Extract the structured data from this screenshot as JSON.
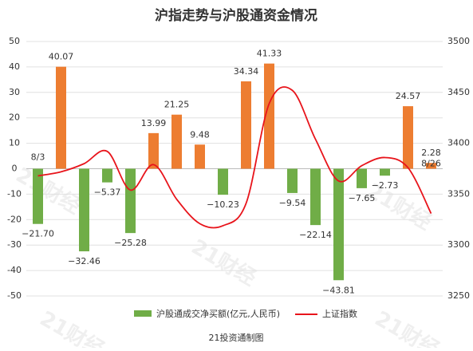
{
  "chart_data": {
    "type": "bar",
    "title": "沪指走势与沪股通资金情况",
    "source": "21投资通制图",
    "watermark": "21财经",
    "categories": [
      "8/3",
      null,
      null,
      null,
      null,
      null,
      null,
      null,
      null,
      null,
      null,
      null,
      null,
      null,
      null,
      null,
      null,
      "8/26"
    ],
    "series": [
      {
        "name": "沪股通成交净买额(亿元,人民币)",
        "type": "bar",
        "positive_color": "#ed7d31",
        "negative_color": "#70ad47",
        "values": [
          -21.7,
          40.07,
          -32.46,
          -5.37,
          -25.28,
          13.99,
          21.25,
          9.48,
          -10.23,
          34.34,
          41.33,
          -9.54,
          -22.14,
          -43.81,
          -7.65,
          -2.73,
          24.57,
          2.28
        ],
        "value_labels": [
          "−21.70",
          "40.07",
          "−32.46",
          "−5.37",
          "−25.28",
          "13.99",
          "21.25",
          "9.48",
          "−10.23",
          "34.34",
          "41.33",
          "−9.54",
          "−22.14",
          "−43.81",
          "−7.65",
          "−2.73",
          "24.57",
          "2.28"
        ]
      },
      {
        "name": "上证指数",
        "type": "line",
        "axis": "y2",
        "color": "#e8141b",
        "values": [
          3368,
          3372,
          3380,
          3392,
          3354,
          3379,
          3345,
          3321,
          3319,
          3341,
          3439,
          3452,
          3404,
          3363,
          3378,
          3386,
          3376,
          3331
        ]
      }
    ],
    "ylim": [
      -50,
      50
    ],
    "yticks": [
      -50,
      -40,
      -30,
      -20,
      -10,
      0,
      10,
      20,
      30,
      40,
      50
    ],
    "y2lim": [
      3250,
      3500
    ],
    "y2ticks": [
      3250,
      3300,
      3350,
      3400,
      3450,
      3500
    ],
    "grid": true
  }
}
